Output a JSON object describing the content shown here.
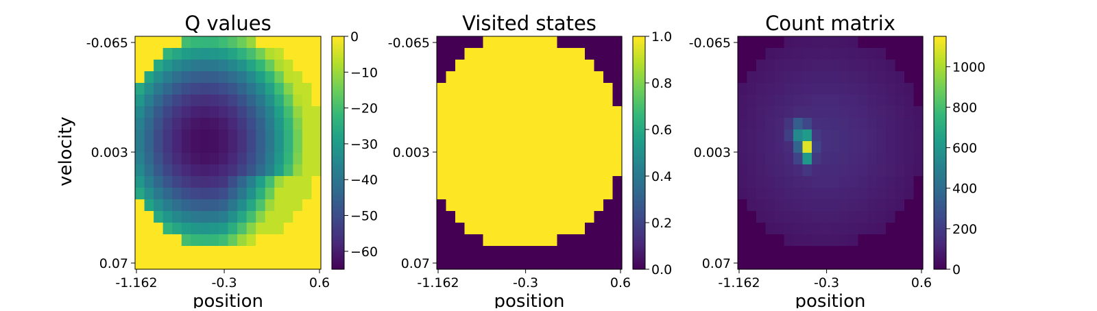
{
  "colors": {
    "viridis": [
      "#440154",
      "#482878",
      "#3e4989",
      "#31688e",
      "#26828e",
      "#1f9e89",
      "#35b779",
      "#6ece58",
      "#b5de2b",
      "#fde725"
    ]
  },
  "chart_data": [
    {
      "type": "heatmap",
      "title": "Q values",
      "xlabel": "position",
      "ylabel": "velocity",
      "x_ticks": [
        "-1.162",
        "-0.3",
        "0.6"
      ],
      "y_ticks": [
        "-0.065",
        "0.003",
        "0.07"
      ],
      "xlim": [
        -1.2,
        0.6
      ],
      "ylim": [
        -0.07,
        0.07
      ],
      "grid_resolution": [
        20,
        20
      ],
      "colorbar": {
        "min": -65,
        "max": 0,
        "ticks": [
          "0",
          "−10",
          "−20",
          "−30",
          "−40",
          "−50",
          "−60"
        ],
        "tick_values": [
          0,
          -10,
          -20,
          -30,
          -40,
          -50,
          -60
        ]
      },
      "description_of_values": "unvisited cells are 0; visited region forms an ellipse with minimum about -63 near position -0.5, velocity 0.003"
    },
    {
      "type": "heatmap",
      "title": "Visited states",
      "xlabel": "position",
      "x_ticks": [
        "-1.162",
        "-0.3",
        "0.6"
      ],
      "y_ticks": [
        "-0.065",
        "0.003",
        "0.07"
      ],
      "xlim": [
        -1.2,
        0.6
      ],
      "ylim": [
        -0.07,
        0.07
      ],
      "colorbar": {
        "min": 0,
        "max": 1,
        "ticks": [
          "1.0",
          "0.8",
          "0.6",
          "0.4",
          "0.2",
          "0.0"
        ],
        "tick_values": [
          1,
          0.8,
          0.6,
          0.4,
          0.2,
          0
        ]
      },
      "description_of_values": "binary: 1 inside visited ellipse, 0 outside"
    },
    {
      "type": "heatmap",
      "title": "Count matrix",
      "xlabel": "position",
      "x_ticks": [
        "-1.162",
        "-0.3",
        "0.6"
      ],
      "y_ticks": [
        "-0.065",
        "0.003",
        "0.07"
      ],
      "xlim": [
        -1.2,
        0.6
      ],
      "ylim": [
        -0.07,
        0.07
      ],
      "colorbar": {
        "min": 0,
        "max": 1150,
        "ticks": [
          "1000",
          "800",
          "600",
          "400",
          "200",
          "0"
        ],
        "tick_values": [
          1000,
          800,
          600,
          400,
          200,
          0
        ]
      },
      "description_of_values": "visit counts, mostly under 200 inside the ellipse, peak about 1150 near position -0.45, velocity 0.003"
    }
  ]
}
